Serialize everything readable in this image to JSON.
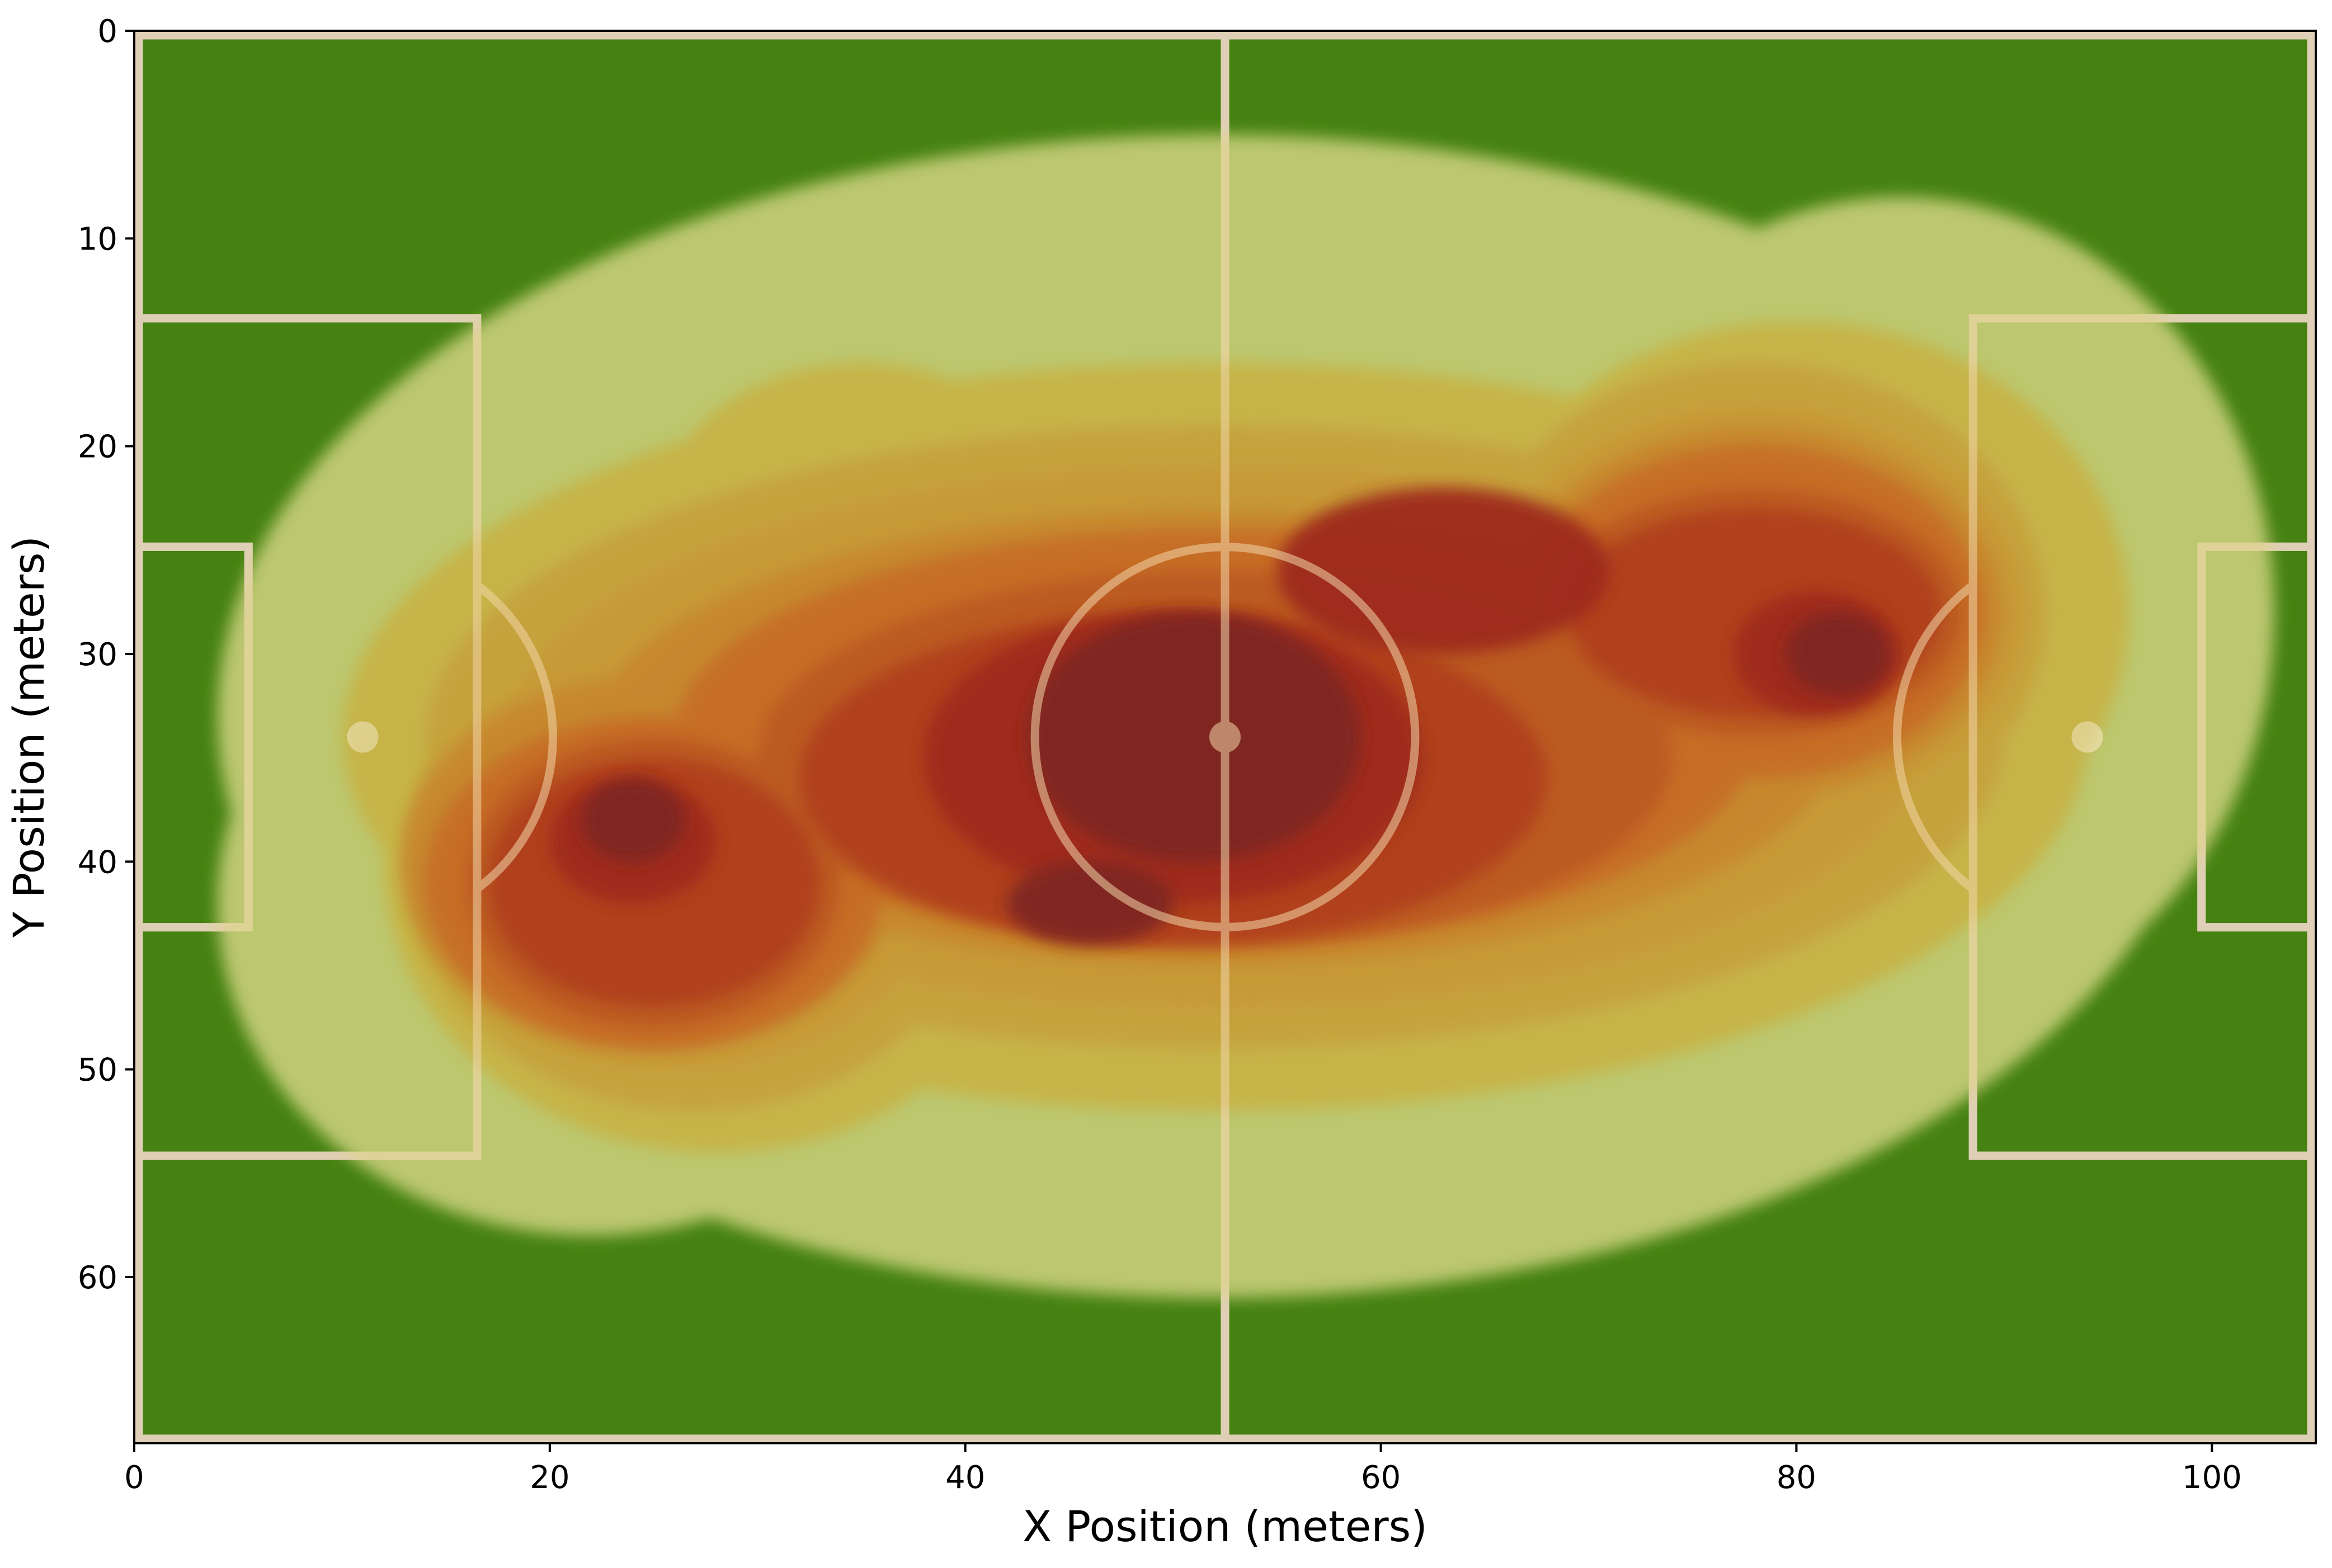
{
  "chart_data": {
    "type": "heatmap",
    "subtype": "kde-density-contours-over-football-pitch",
    "title": "",
    "xlabel": "X Position (meters)",
    "ylabel": "Y Position (meters)",
    "xlim": [
      0,
      105
    ],
    "ylim": [
      68,
      0
    ],
    "y_axis_inverted": true,
    "grid": false,
    "legend": "none",
    "xticks": [
      0,
      20,
      40,
      60,
      80,
      100
    ],
    "yticks": [
      0,
      10,
      20,
      30,
      40,
      50,
      60
    ],
    "xtick_labels": [
      "0",
      "20",
      "40",
      "60",
      "80",
      "100"
    ],
    "ytick_labels": [
      "0",
      "10",
      "20",
      "30",
      "40",
      "50",
      "60"
    ],
    "pitch": {
      "length": 105,
      "width": 68,
      "grass_color": "#458211",
      "line_color": "#c8c8c8",
      "halfway_line_x": 52.5,
      "center_spot": [
        52.5,
        34
      ],
      "center_circle_radius": 9.15,
      "penalty_box_depth": 16.5,
      "penalty_box_y": [
        13.84,
        54.16
      ],
      "goal_area_depth": 5.5,
      "goal_area_y": [
        24.84,
        43.16
      ],
      "penalty_spots": [
        [
          11,
          34
        ],
        [
          94,
          34
        ]
      ],
      "penalty_arc_radius": 9.15
    },
    "density_hotspots": [
      {
        "x": 52,
        "y": 34,
        "relative_density": 1.0
      },
      {
        "x": 24,
        "y": 38,
        "relative_density": 0.92
      },
      {
        "x": 82,
        "y": 30,
        "relative_density": 0.9
      },
      {
        "x": 45,
        "y": 42,
        "relative_density": 0.85
      },
      {
        "x": 60,
        "y": 26,
        "relative_density": 0.82
      },
      {
        "x": 72,
        "y": 24,
        "relative_density": 0.7
      },
      {
        "x": 35,
        "y": 46,
        "relative_density": 0.65
      },
      {
        "x": 30,
        "y": 22,
        "relative_density": 0.45
      }
    ],
    "contour_levels": 10,
    "colormap": [
      "#c9cf7a",
      "#c7b446",
      "#c6a23e",
      "#c79a38",
      "#c7882f",
      "#c66d27",
      "#bb5a22",
      "#b0411f",
      "#9e2b1f",
      "#7f2622"
    ],
    "contour_alpha": 0.85
  }
}
